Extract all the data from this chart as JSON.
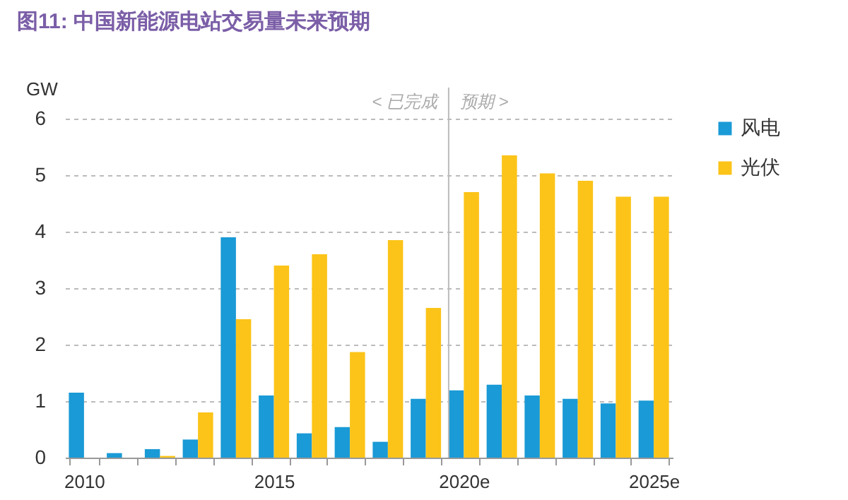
{
  "chart_data": {
    "type": "bar",
    "title": "图11: 中国新能源电站交易量未来预期",
    "ylabel": "GW",
    "categories": [
      "2010",
      null,
      null,
      null,
      null,
      "2015",
      null,
      null,
      null,
      null,
      "2020e",
      null,
      null,
      null,
      null,
      "2025e"
    ],
    "series": [
      {
        "name": "风电",
        "color": "#1a9ad6",
        "values": [
          1.15,
          0.08,
          0.15,
          0.32,
          3.9,
          1.1,
          0.43,
          0.54,
          0.28,
          1.04,
          1.19,
          1.29,
          1.1,
          1.04,
          0.96,
          1.01
        ]
      },
      {
        "name": "光伏",
        "color": "#fcc419",
        "values": [
          null,
          null,
          0.03,
          0.8,
          2.45,
          3.4,
          3.6,
          1.87,
          3.85,
          2.65,
          4.7,
          5.35,
          5.03,
          4.9,
          4.62,
          4.62
        ]
      }
    ],
    "ylim": [
      0,
      6
    ],
    "yticks": [
      0,
      1,
      2,
      3,
      4,
      5,
      6
    ],
    "grid": "y",
    "legend": "right",
    "ref_lines": [
      {
        "axis": "x",
        "value": "2020e",
        "label": null,
        "color": "#bbbbbb"
      }
    ],
    "annotations": [
      "< 已完成",
      "预期 >"
    ]
  }
}
